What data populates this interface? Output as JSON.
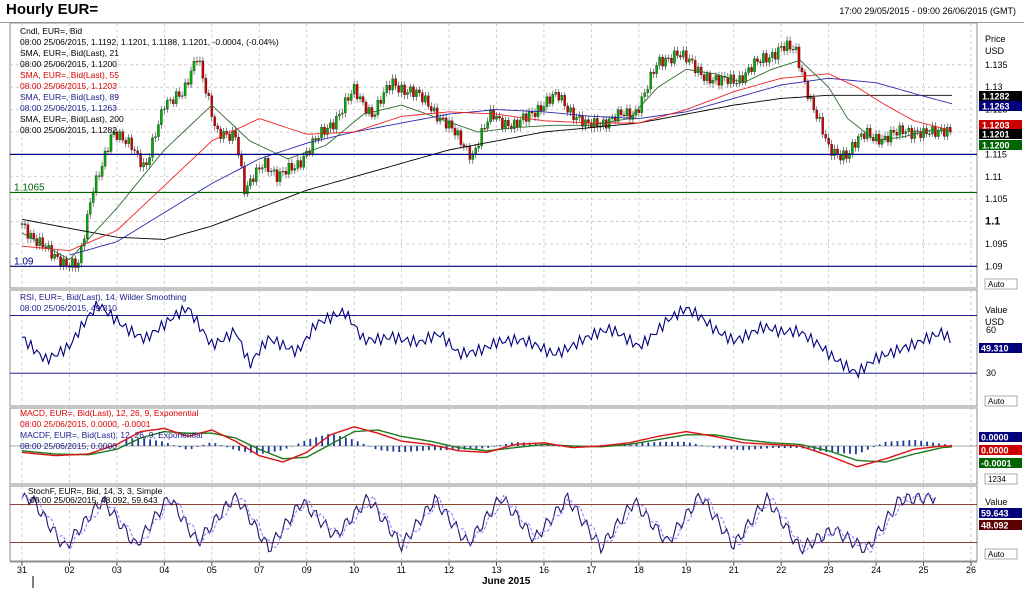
{
  "window": {
    "title": "Hourly EUR=",
    "date_range": "17:00 29/05/2015 - 09:00 26/06/2015 (GMT)"
  },
  "price_panel": {
    "legend": [
      {
        "text": "Cndl, EUR=, Bid",
        "color": "#000000"
      },
      {
        "text": "08:00 25/06/2015, 1.1192, 1.1201, 1.1188, 1.1201, -0.0004, (-0.04%)",
        "color": "#000000"
      },
      {
        "text": "SMA, EUR=, Bid(Last), 21",
        "color": "#000000"
      },
      {
        "text": "08:00 25/06/2015, 1.1200",
        "color": "#000000"
      },
      {
        "text": "SMA, EUR=, Bid(Last), 55",
        "color": "#dd0000"
      },
      {
        "text": "08:00 25/06/2015, 1.1203",
        "color": "#dd0000"
      },
      {
        "text": "SMA, EUR=, Bid(Last), 89",
        "color": "#1a1a8c"
      },
      {
        "text": "08:00 25/06/2015, 1.1263",
        "color": "#1a1a8c"
      },
      {
        "text": "SMA, EUR=, Bid(Last), 200",
        "color": "#000000"
      },
      {
        "text": "08:00 25/06/2015, 1.1282",
        "color": "#000000"
      }
    ],
    "axis_title": [
      "Price",
      "USD"
    ],
    "auto_label": "Auto"
  },
  "rsi_panel": {
    "legend": [
      {
        "text": "RSI, EUR=, Bid(Last), 14, Wilder Smoothing",
        "color": "#1a1a8c"
      },
      {
        "text": "08:00 25/06/2015, 49.310",
        "color": "#1a1a8c"
      }
    ],
    "axis_title": [
      "Value",
      "USD"
    ],
    "auto_label": "Auto"
  },
  "macd_panel": {
    "legend": [
      {
        "text": "MACD, EUR=, Bid(Last), 12, 26, 9, Exponential",
        "color": "#dd0000"
      },
      {
        "text": "08:00 25/06/2015, 0.0000, -0.0001",
        "color": "#dd0000"
      },
      {
        "text": "MACDF, EUR=, Bid(Last), 12, 26, 9, Exponential",
        "color": "#1a1a8c"
      },
      {
        "text": "08:00 25/06/2015, 0.0000",
        "color": "#1a1a8c"
      }
    ],
    "scale_label": "1234"
  },
  "stoch_panel": {
    "legend": [
      {
        "text": "StochF, EUR=, Bid, 14, 3, 3, Simple",
        "color": "#000000"
      },
      {
        "text": "08:00 25/06/2015, 48.092, 59.643",
        "color": "#000000"
      }
    ],
    "axis_title": [
      "Value"
    ],
    "auto_label": "Auto"
  },
  "x_axis": {
    "days": [
      "31",
      "02",
      "03",
      "04",
      "05",
      "07",
      "09",
      "10",
      "11",
      "12",
      "13",
      "16",
      "17",
      "18",
      "19",
      "21",
      "22",
      "23",
      "24",
      "25",
      "26"
    ],
    "month_label": "June 2015"
  },
  "colors": {
    "candle_up": "#00aa00",
    "candle_down": "#cc0000",
    "sma21": "#2e6b2e",
    "sma55": "#ee2222",
    "sma89": "#2a2ab0",
    "sma200": "#000000",
    "navy": "#000080",
    "tag_navy": "#00007a",
    "tag_green": "#006400",
    "tag_red": "#cc0000",
    "tag_black": "#000000",
    "tag_darkred": "#5a0000",
    "grid": "#c4c4c4"
  },
  "chart_data": [
    {
      "type": "candlestick",
      "title": "Hourly EUR=",
      "xlabel": "June 2015",
      "ylabel": "Price USD",
      "x_range": [
        "29/05/2015 17:00",
        "26/06/2015 09:00"
      ],
      "ylim": [
        1.0865,
        1.143
      ],
      "y_ticks": [
        1.09,
        1.095,
        1.1,
        1.105,
        1.11,
        1.115,
        1.12,
        1.125,
        1.13,
        1.135
      ],
      "grid": true,
      "legend_position": "top-left",
      "close_path_days": [
        0,
        0.6,
        1.2,
        1.5,
        1.9,
        2.3,
        2.6,
        3.0,
        3.4,
        3.7,
        4.1,
        4.5,
        4.7,
        5.1,
        5.4,
        5.8,
        6.2,
        6.6,
        7.0,
        7.4,
        7.8,
        8.2,
        8.6,
        9.0,
        9.5,
        9.9,
        10.4,
        10.8,
        11.3,
        11.9,
        12.4,
        12.9,
        13.4,
        13.8,
        14.2,
        14.7,
        15.1,
        15.6,
        16.0,
        16.3,
        16.6,
        17.0,
        17.4,
        17.8,
        18.2,
        18.6,
        19.0,
        19.4,
        19.6
      ],
      "close_path_values": [
        1.0995,
        1.0925,
        1.09,
        1.108,
        1.119,
        1.118,
        1.111,
        1.127,
        1.128,
        1.138,
        1.119,
        1.12,
        1.106,
        1.114,
        1.1095,
        1.113,
        1.118,
        1.123,
        1.129,
        1.124,
        1.131,
        1.129,
        1.126,
        1.121,
        1.115,
        1.124,
        1.121,
        1.125,
        1.128,
        1.121,
        1.123,
        1.124,
        1.135,
        1.138,
        1.134,
        1.131,
        1.132,
        1.136,
        1.139,
        1.138,
        1.128,
        1.116,
        1.115,
        1.12,
        1.118,
        1.121,
        1.119,
        1.121,
        1.1201
      ],
      "series": [
        {
          "name": "SMA 21",
          "last": 1.12
        },
        {
          "name": "SMA 55",
          "last": 1.1203
        },
        {
          "name": "SMA 89",
          "last": 1.1263
        },
        {
          "name": "SMA 200",
          "last": 1.1282
        }
      ],
      "sma21_days": [
        0,
        1.0,
        2.0,
        3.0,
        4.0,
        4.8,
        5.6,
        6.4,
        7.2,
        8.0,
        8.8,
        9.6,
        10.4,
        11.2,
        12.0,
        12.8,
        13.4,
        14.0,
        14.6,
        15.2,
        15.8,
        16.4,
        17.0,
        17.4,
        18.0,
        18.6,
        19.2,
        19.6
      ],
      "sma21_values": [
        1.0975,
        1.0915,
        1.103,
        1.116,
        1.126,
        1.118,
        1.114,
        1.117,
        1.124,
        1.126,
        1.123,
        1.12,
        1.121,
        1.1215,
        1.1215,
        1.123,
        1.13,
        1.134,
        1.133,
        1.131,
        1.134,
        1.136,
        1.13,
        1.123,
        1.118,
        1.119,
        1.1205,
        1.12
      ],
      "sma55_days": [
        0,
        1.0,
        2.0,
        3.0,
        4.0,
        5.0,
        6.0,
        7.0,
        8.0,
        9.0,
        10.0,
        11.0,
        12.0,
        13.0,
        14.0,
        15.0,
        16.0,
        17.0,
        17.6,
        18.2,
        18.8,
        19.6
      ],
      "sma55_values": [
        1.0945,
        1.0935,
        1.098,
        1.108,
        1.118,
        1.123,
        1.1195,
        1.12,
        1.1235,
        1.1245,
        1.124,
        1.1225,
        1.122,
        1.122,
        1.125,
        1.129,
        1.132,
        1.133,
        1.13,
        1.126,
        1.1225,
        1.1203
      ],
      "sma89_days": [
        1.0,
        2.0,
        3.0,
        4.0,
        5.0,
        6.0,
        7.0,
        8.0,
        9.0,
        10.0,
        11.0,
        12.0,
        13.0,
        14.0,
        15.0,
        16.0,
        17.0,
        18.0,
        19.0,
        19.6
      ],
      "sma89_values": [
        1.0925,
        1.0955,
        1.102,
        1.1085,
        1.114,
        1.1175,
        1.12,
        1.122,
        1.124,
        1.125,
        1.1245,
        1.1235,
        1.123,
        1.1245,
        1.1275,
        1.1305,
        1.132,
        1.131,
        1.128,
        1.1263
      ],
      "sma200_days": [
        0,
        1.0,
        2.0,
        3.0,
        4.0,
        5.0,
        6.0,
        7.0,
        8.0,
        9.0,
        10.0,
        11.0,
        12.0,
        13.0,
        14.0,
        15.0,
        16.0,
        17.0,
        18.0,
        19.0,
        19.6
      ],
      "sma200_values": [
        1.1005,
        1.0985,
        1.0965,
        1.096,
        1.099,
        1.103,
        1.107,
        1.11,
        1.113,
        1.116,
        1.118,
        1.12,
        1.121,
        1.122,
        1.124,
        1.126,
        1.1275,
        1.1282,
        1.1282,
        1.1282,
        1.1282
      ],
      "horizontal_lines": [
        {
          "value": 1.115,
          "color": "#000080"
        },
        {
          "value": 1.1065,
          "label": "1.1065",
          "color": "#006400"
        },
        {
          "value": 1.09,
          "label": "1.09",
          "color": "#000080"
        }
      ],
      "price_tags": [
        {
          "label": "1.1282",
          "value": 1.1282,
          "color": "#000000"
        },
        {
          "label": "1.1263",
          "value": 1.1263,
          "color": "#00007a"
        },
        {
          "label": "1.1203",
          "value": 1.1203,
          "color": "#cc0000"
        },
        {
          "label": "1.1201",
          "value": 1.1201,
          "color": "#000000"
        },
        {
          "label": "1.1200",
          "value": 1.12,
          "color": "#006400"
        }
      ]
    },
    {
      "type": "line",
      "title": "RSI, EUR=, Bid(Last), 14, Wilder Smoothing",
      "ylim": [
        10,
        85
      ],
      "y_ticks": [
        30,
        60
      ],
      "reference_lines": [
        30,
        70
      ],
      "days": [
        0,
        0.5,
        1.0,
        1.6,
        2.0,
        2.6,
        3.0,
        3.5,
        4.0,
        4.5,
        4.8,
        5.2,
        5.8,
        6.2,
        6.8,
        7.2,
        7.8,
        8.4,
        8.8,
        9.2,
        9.6,
        10.0,
        10.6,
        11.2,
        11.8,
        12.4,
        13.0,
        13.6,
        14.0,
        14.6,
        15.0,
        15.6,
        16.0,
        16.4,
        16.8,
        17.2,
        17.6,
        18.0,
        18.6,
        19.0,
        19.4,
        19.6
      ],
      "values": [
        55,
        42,
        48,
        76,
        68,
        55,
        62,
        74,
        52,
        60,
        34,
        52,
        47,
        66,
        70,
        52,
        58,
        50,
        55,
        44,
        48,
        52,
        50,
        45,
        54,
        58,
        50,
        68,
        73,
        60,
        55,
        62,
        56,
        58,
        52,
        40,
        28,
        38,
        50,
        55,
        57,
        49.31
      ],
      "last": 49.31
    },
    {
      "type": "line",
      "title": "MACD, EUR=, Bid(Last), 12, 26, 9, Exponential",
      "ylim": [
        -0.004,
        0.004
      ],
      "series": [
        {
          "name": "MACD",
          "last": 0.0
        },
        {
          "name": "MACDF",
          "last": 0.0
        }
      ],
      "days": [
        0,
        0.7,
        1.4,
        2.0,
        2.5,
        3.0,
        3.5,
        4.0,
        4.5,
        5.0,
        5.5,
        6.0,
        6.5,
        7.0,
        7.5,
        8.0,
        8.6,
        9.2,
        9.8,
        10.4,
        11.0,
        11.6,
        12.2,
        12.8,
        13.4,
        14.0,
        14.6,
        15.2,
        15.8,
        16.4,
        17.0,
        17.6,
        18.2,
        18.8,
        19.4,
        19.6
      ],
      "macd_values": [
        -0.0008,
        -0.0012,
        -0.001,
        0.0002,
        0.0018,
        0.0022,
        0.0012,
        0.002,
        0.0006,
        -0.0012,
        -0.002,
        -0.0008,
        0.0014,
        0.0024,
        0.0016,
        0.0006,
        0.0002,
        -0.0006,
        -0.0008,
        0.0002,
        0.0004,
        -0.0002,
        0.0,
        0.0004,
        0.0012,
        0.0018,
        0.0012,
        0.0004,
        0.0002,
        0.0,
        -0.0012,
        -0.0026,
        -0.0016,
        -0.0004,
        0.0,
        0.0
      ],
      "signal_values": [
        -0.0006,
        -0.001,
        -0.0011,
        -0.0004,
        0.001,
        0.0018,
        0.0016,
        0.0016,
        0.001,
        -0.0004,
        -0.0016,
        -0.0014,
        0.0002,
        0.0018,
        0.002,
        0.0012,
        0.0006,
        -0.0002,
        -0.0006,
        -0.0002,
        0.0002,
        0.0,
        -0.0001,
        0.0002,
        0.0008,
        0.0014,
        0.0014,
        0.0008,
        0.0004,
        0.0002,
        -0.0006,
        -0.0018,
        -0.002,
        -0.001,
        -0.0002,
        -0.0001
      ],
      "tags": [
        {
          "label": "0.0000",
          "color": "#00007a"
        },
        {
          "label": "0.0000",
          "color": "#cc0000"
        },
        {
          "label": "-0.0001",
          "color": "#006400"
        }
      ]
    },
    {
      "type": "line",
      "title": "StochF, EUR=, Bid, 14, 3, 3, Simple",
      "ylim": [
        0,
        100
      ],
      "reference_lines": [
        20,
        80
      ],
      "series": [
        {
          "name": "%K",
          "last": 48.092
        },
        {
          "name": "%D",
          "last": 59.643
        }
      ],
      "cycle_days": [
        0.2,
        0.9,
        1.7,
        2.4,
        3.1,
        3.7,
        4.5,
        5.2,
        5.9,
        6.6,
        7.3,
        8.0,
        8.7,
        9.4,
        10.1,
        10.8,
        11.5,
        12.2,
        12.9,
        13.6,
        14.3,
        15.0,
        15.7,
        16.4,
        17.1,
        17.8,
        18.5,
        19.2
      ],
      "cycle_values": [
        90,
        12,
        88,
        15,
        92,
        20,
        95,
        10,
        85,
        30,
        90,
        15,
        88,
        18,
        92,
        25,
        90,
        12,
        85,
        20,
        95,
        15,
        90,
        10,
        40,
        8,
        88,
        92
      ],
      "tags": [
        {
          "label": "59.643",
          "color": "#00007a"
        },
        {
          "label": "48.092",
          "color": "#5a0000"
        }
      ]
    }
  ]
}
